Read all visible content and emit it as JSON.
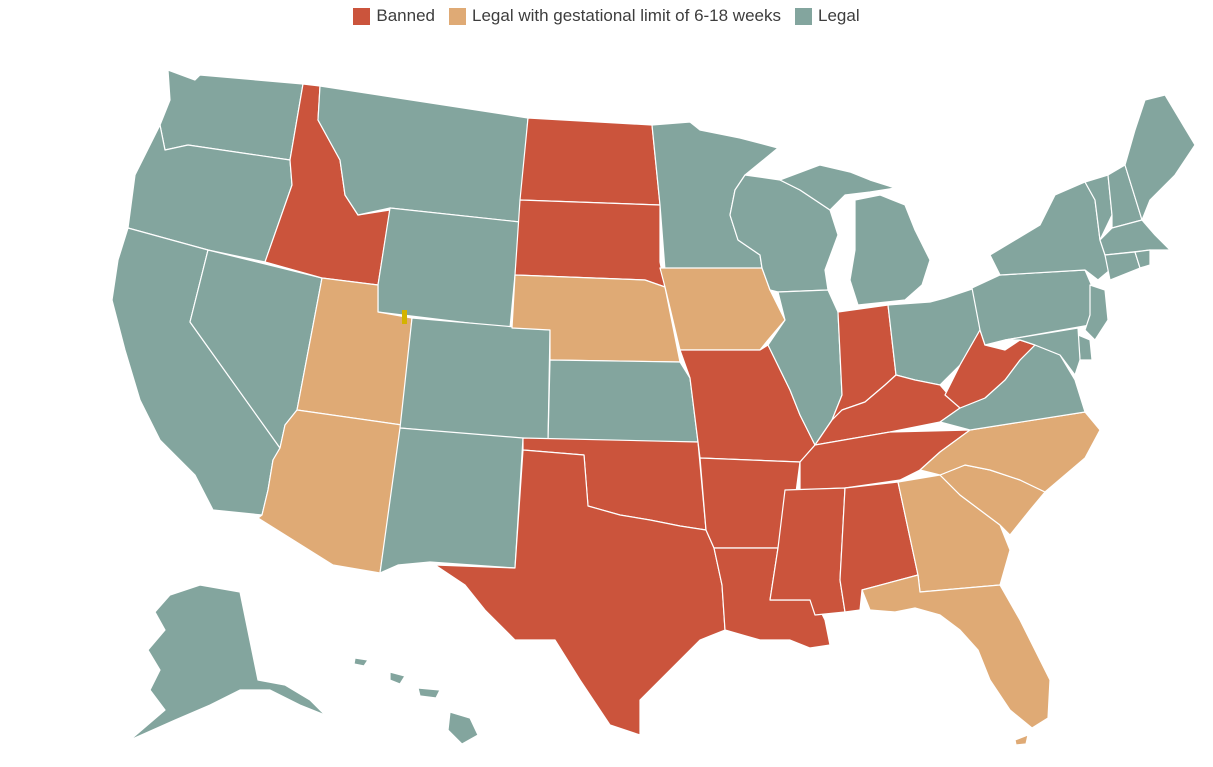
{
  "legend": {
    "items": [
      {
        "label": "Banned",
        "color": "#cb543c"
      },
      {
        "label": "Legal with gestational limit of 6-18 weeks",
        "color": "#dfaa75"
      },
      {
        "label": "Legal",
        "color": "#83a59e"
      }
    ]
  },
  "colors": {
    "banned": "#cb543c",
    "limited": "#dfaa75",
    "legal": "#83a59e"
  },
  "states": [
    {
      "state": "Washington",
      "status": "legal"
    },
    {
      "state": "Oregon",
      "status": "legal"
    },
    {
      "state": "California",
      "status": "legal"
    },
    {
      "state": "Nevada",
      "status": "legal"
    },
    {
      "state": "Idaho",
      "status": "banned"
    },
    {
      "state": "Montana",
      "status": "legal"
    },
    {
      "state": "Wyoming",
      "status": "legal"
    },
    {
      "state": "Utah",
      "status": "limited"
    },
    {
      "state": "Arizona",
      "status": "limited"
    },
    {
      "state": "Colorado",
      "status": "legal"
    },
    {
      "state": "New Mexico",
      "status": "legal"
    },
    {
      "state": "North Dakota",
      "status": "banned"
    },
    {
      "state": "South Dakota",
      "status": "banned"
    },
    {
      "state": "Nebraska",
      "status": "limited"
    },
    {
      "state": "Kansas",
      "status": "legal"
    },
    {
      "state": "Oklahoma",
      "status": "banned"
    },
    {
      "state": "Texas",
      "status": "banned"
    },
    {
      "state": "Minnesota",
      "status": "legal"
    },
    {
      "state": "Iowa",
      "status": "limited"
    },
    {
      "state": "Missouri",
      "status": "banned"
    },
    {
      "state": "Arkansas",
      "status": "banned"
    },
    {
      "state": "Louisiana",
      "status": "banned"
    },
    {
      "state": "Wisconsin",
      "status": "legal"
    },
    {
      "state": "Illinois",
      "status": "legal"
    },
    {
      "state": "Michigan",
      "status": "legal"
    },
    {
      "state": "Indiana",
      "status": "banned"
    },
    {
      "state": "Ohio",
      "status": "legal"
    },
    {
      "state": "Kentucky",
      "status": "banned"
    },
    {
      "state": "Tennessee",
      "status": "banned"
    },
    {
      "state": "Mississippi",
      "status": "banned"
    },
    {
      "state": "Alabama",
      "status": "banned"
    },
    {
      "state": "Georgia",
      "status": "limited"
    },
    {
      "state": "Florida",
      "status": "limited"
    },
    {
      "state": "South Carolina",
      "status": "limited"
    },
    {
      "state": "North Carolina",
      "status": "limited"
    },
    {
      "state": "Virginia",
      "status": "legal"
    },
    {
      "state": "West Virginia",
      "status": "banned"
    },
    {
      "state": "Pennsylvania",
      "status": "legal"
    },
    {
      "state": "New York",
      "status": "legal"
    },
    {
      "state": "Vermont",
      "status": "legal"
    },
    {
      "state": "New Hampshire",
      "status": "legal"
    },
    {
      "state": "Maine",
      "status": "legal"
    },
    {
      "state": "Massachusetts",
      "status": "legal"
    },
    {
      "state": "Connecticut",
      "status": "legal"
    },
    {
      "state": "Rhode Island",
      "status": "legal"
    },
    {
      "state": "New Jersey",
      "status": "legal"
    },
    {
      "state": "Delaware",
      "status": "legal"
    },
    {
      "state": "Maryland",
      "status": "legal"
    },
    {
      "state": "Alaska",
      "status": "legal"
    },
    {
      "state": "Hawaii",
      "status": "legal"
    }
  ]
}
